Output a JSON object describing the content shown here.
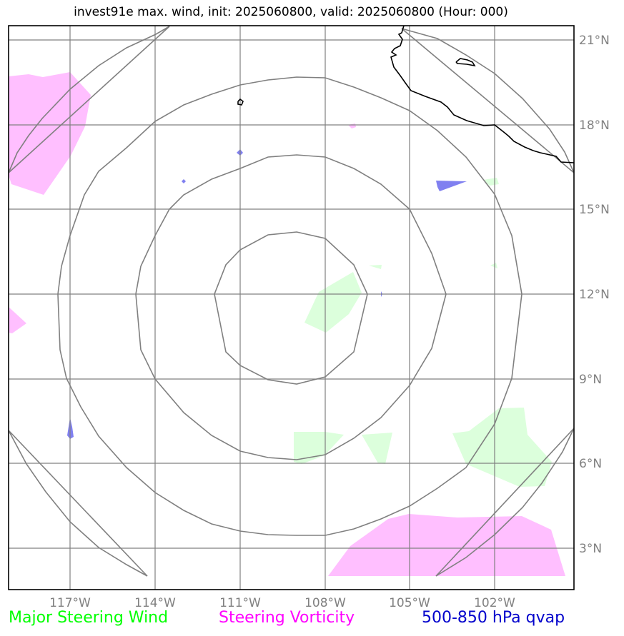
{
  "title": "invest91e max. wind, init: 2025060800, valid: 2025060800 (Hour: 000)",
  "map": {
    "lon_labels": [
      "117°W",
      "114°W",
      "111°W",
      "108°W",
      "105°W",
      "102°W"
    ],
    "lat_labels": [
      "21°N",
      "18°N",
      "15°N",
      "12°N",
      "9°N",
      "6°N",
      "3°N"
    ],
    "grid_color": "#808080"
  },
  "legend": [
    {
      "id": "wind",
      "label": "Major Steering Wind",
      "color": "#00ff00"
    },
    {
      "id": "vort",
      "label": "Steering Vorticity",
      "color": "#ff00ff"
    },
    {
      "id": "qvap",
      "label": "500-850 hPa qvap",
      "color": "#0000cc"
    }
  ],
  "fills": {
    "wind_color": "#dcffdc",
    "vorticity_color": "#ffbfff",
    "qvap_color": "#8080f0"
  }
}
